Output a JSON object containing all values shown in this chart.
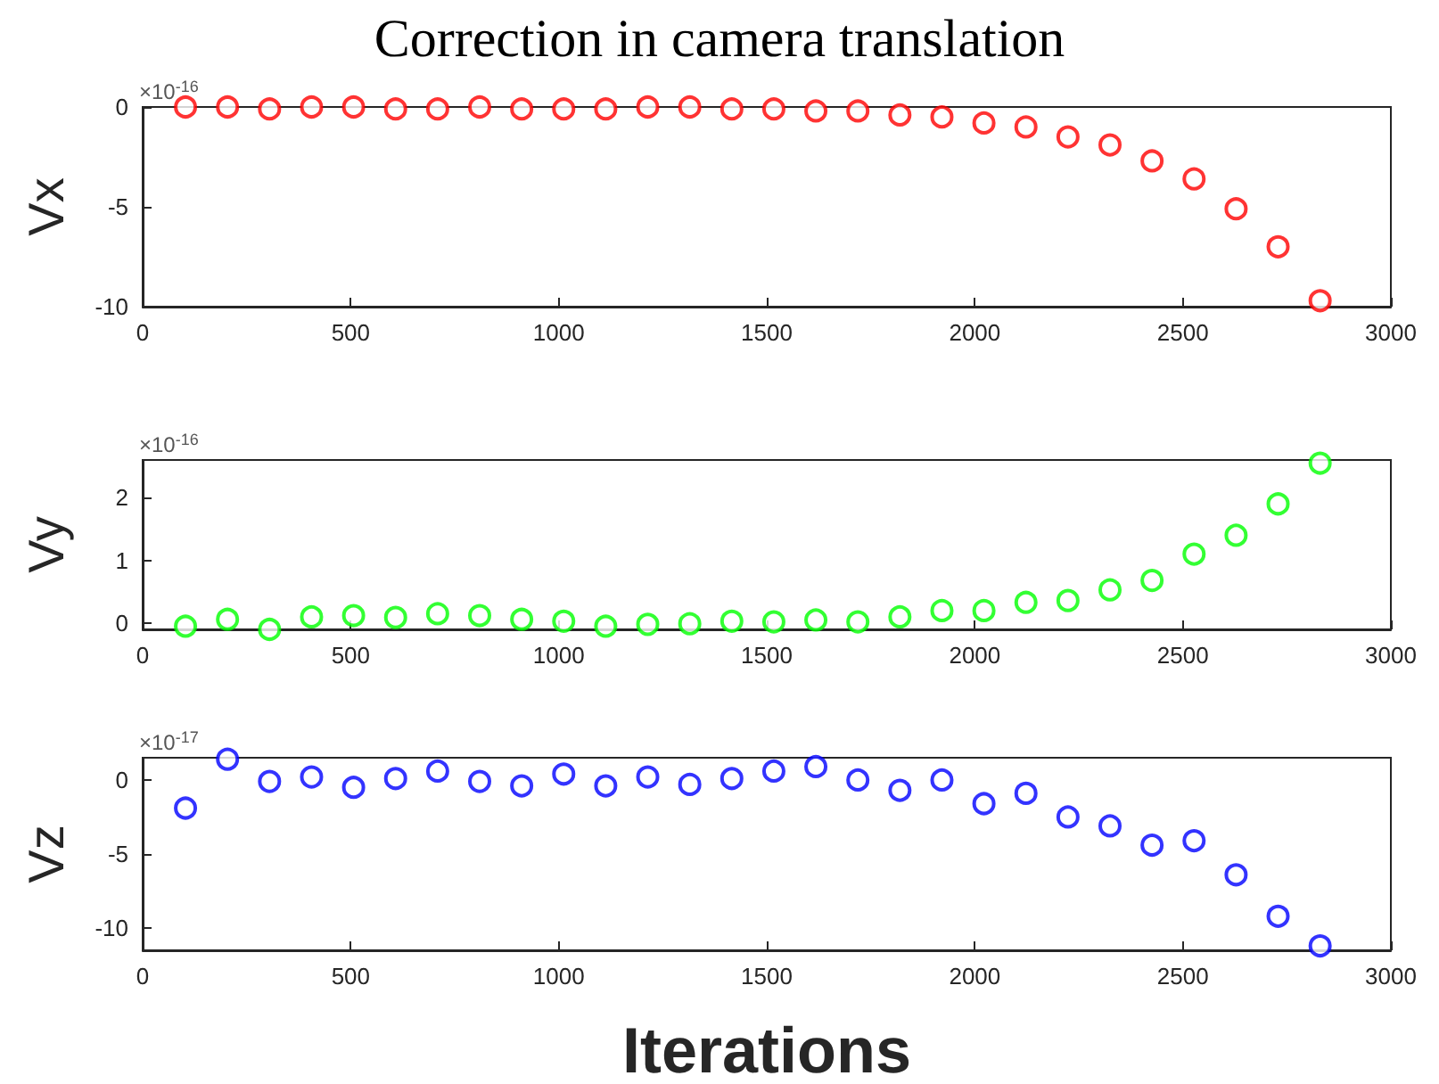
{
  "chart_data": [
    {
      "type": "scatter",
      "title": "Correction in camera translation",
      "ylabel": "Vx",
      "annotations": [
        "×10$^{-16}$"
      ],
      "marker": "circle",
      "grid": false,
      "xlim": [
        0,
        3000
      ],
      "xticks": [
        0,
        500,
        1000,
        1500,
        2000,
        2500,
        3000
      ],
      "ylim": [
        -10,
        0
      ],
      "yticks": [
        -10,
        -5,
        0
      ],
      "x": [
        103,
        204,
        305,
        406,
        507,
        608,
        709,
        810,
        911,
        1012,
        1113,
        1214,
        1315,
        1416,
        1517,
        1618,
        1719,
        1820,
        1921,
        2022,
        2123,
        2224,
        2325,
        2426,
        2527,
        2628,
        2729,
        2830
      ],
      "series": [
        {
          "color": "#ff0000",
          "values": [
            0,
            0,
            -0.1,
            0,
            0,
            -0.1,
            -0.1,
            0,
            -0.1,
            -0.1,
            -0.1,
            0,
            0,
            -0.1,
            -0.1,
            -0.2,
            -0.2,
            -0.4,
            -0.5,
            -0.8,
            -1.0,
            -1.5,
            -1.9,
            -2.7,
            -3.6,
            -5.1,
            -7.0,
            -9.7
          ]
        }
      ]
    },
    {
      "type": "scatter",
      "ylabel": "Vy",
      "annotations": [
        "×10$^{-16}$"
      ],
      "marker": "circle",
      "grid": false,
      "xlim": [
        0,
        3000
      ],
      "xticks": [
        0,
        500,
        1000,
        1500,
        2000,
        2500,
        3000
      ],
      "ylim": [
        -0.1,
        2.6
      ],
      "yticks": [
        0,
        1,
        2
      ],
      "x": [
        103,
        204,
        305,
        406,
        507,
        608,
        709,
        810,
        911,
        1012,
        1113,
        1214,
        1315,
        1416,
        1517,
        1618,
        1719,
        1820,
        1921,
        2022,
        2123,
        2224,
        2325,
        2426,
        2527,
        2628,
        2729,
        2830
      ],
      "series": [
        {
          "color": "#00ff00",
          "values": [
            -0.05,
            0.06,
            -0.1,
            0.1,
            0.12,
            0.09,
            0.15,
            0.12,
            0.06,
            0.03,
            -0.05,
            -0.02,
            -0.01,
            0.03,
            0.02,
            0.05,
            0.02,
            0.1,
            0.2,
            0.2,
            0.33,
            0.36,
            0.53,
            0.68,
            1.1,
            1.4,
            1.9,
            2.55
          ]
        }
      ]
    },
    {
      "type": "scatter",
      "xlabel": "Iterations",
      "ylabel": "Vz",
      "annotations": [
        "×10$^{-17}$"
      ],
      "marker": "circle",
      "grid": false,
      "xlim": [
        0,
        3000
      ],
      "xticks": [
        0,
        500,
        1000,
        1500,
        2000,
        2500,
        3000
      ],
      "ylim": [
        -11.5,
        1.5
      ],
      "yticks": [
        -10,
        -5,
        0
      ],
      "x": [
        103,
        204,
        305,
        406,
        507,
        608,
        709,
        810,
        911,
        1012,
        1113,
        1214,
        1315,
        1416,
        1517,
        1618,
        1719,
        1820,
        1921,
        2022,
        2123,
        2224,
        2325,
        2426,
        2527,
        2628,
        2729,
        2830
      ],
      "series": [
        {
          "color": "#0000ff",
          "values": [
            -1.9,
            1.4,
            -0.1,
            0.2,
            -0.5,
            0.1,
            0.6,
            -0.1,
            -0.4,
            0.4,
            -0.4,
            0.2,
            -0.3,
            0.1,
            0.6,
            0.9,
            0,
            -0.7,
            0,
            -1.6,
            -0.9,
            -2.5,
            -3.1,
            -4.4,
            -4.1,
            -6.4,
            -9.2,
            -11.2
          ]
        }
      ]
    }
  ]
}
